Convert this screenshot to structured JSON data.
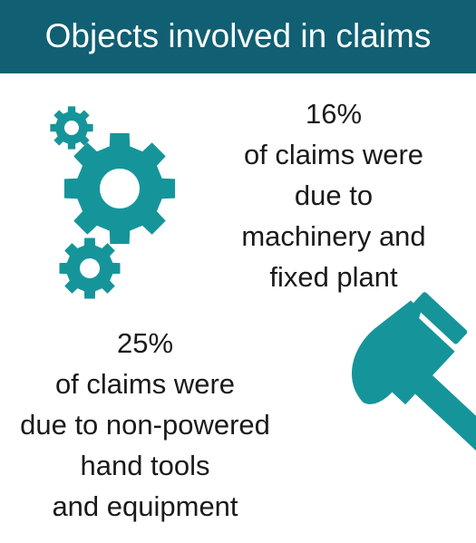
{
  "header": {
    "title": "Objects involved in claims"
  },
  "stats": [
    {
      "value": "16%",
      "lines": [
        "of claims were",
        "due to",
        "machinery and",
        "fixed plant"
      ]
    },
    {
      "value": "25%",
      "lines": [
        "of claims were",
        "due to non-powered",
        "hand tools",
        "and equipment"
      ]
    }
  ],
  "icons": {
    "gears": "gears-icon",
    "hammer": "hammer-icon"
  },
  "colors": {
    "header_background": "#105f73",
    "header_text": "#ffffff",
    "icon_teal": "#15959a",
    "text": "#1a1a1a"
  }
}
